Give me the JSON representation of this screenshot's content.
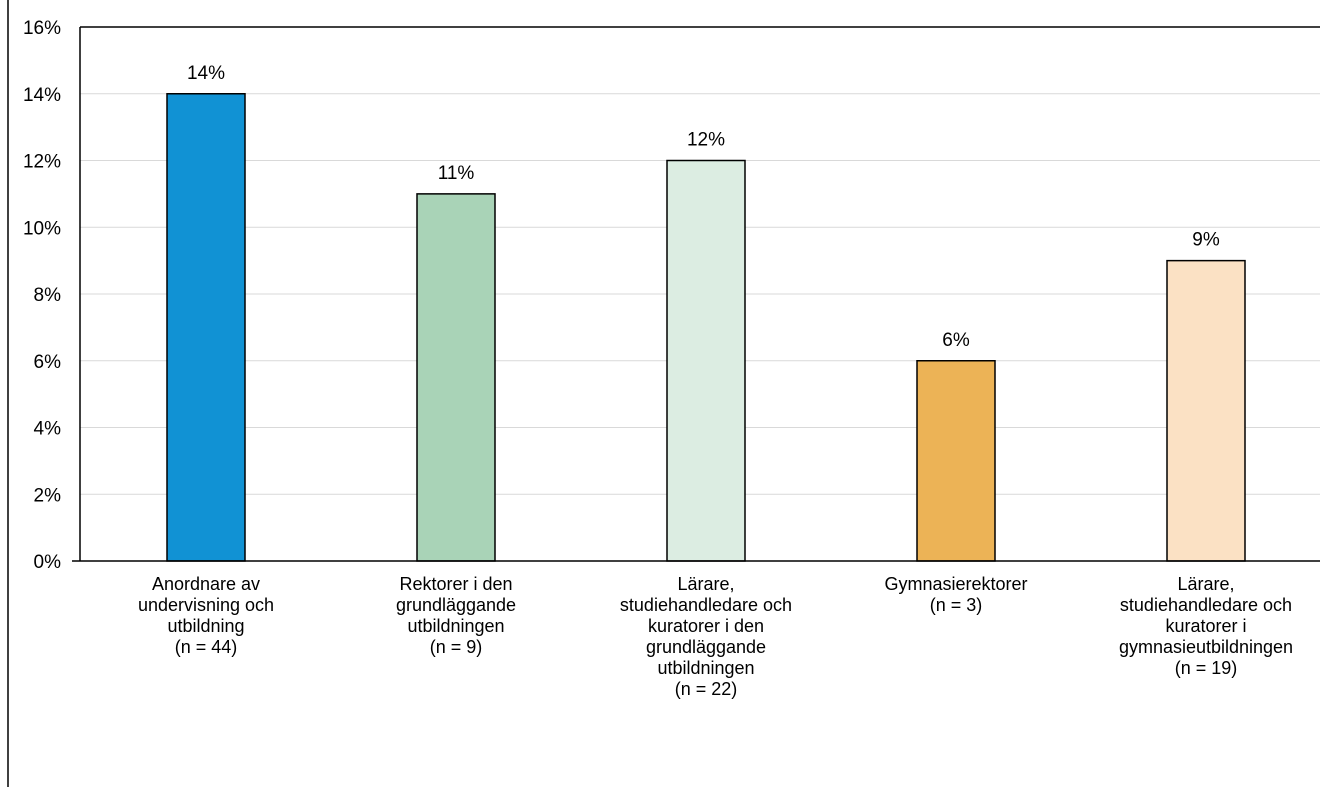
{
  "chart_data": {
    "type": "bar",
    "title": "",
    "xlabel": "",
    "ylabel": "",
    "ylim": [
      0,
      16
    ],
    "y_ticks": [
      0,
      2,
      4,
      6,
      8,
      10,
      12,
      14,
      16
    ],
    "y_tick_labels": [
      "0%",
      "2%",
      "4%",
      "6%",
      "8%",
      "10%",
      "12%",
      "14%",
      "16%"
    ],
    "grid": true,
    "legend": "none",
    "categories": [
      [
        "Anordnare av",
        "undervisning och",
        "utbildning",
        "(n = 44)"
      ],
      [
        "Rektorer i den",
        "grundläggande",
        "utbildningen",
        "(n = 9)"
      ],
      [
        "Lärare,",
        "studiehandledare och",
        "kuratorer i den",
        "grundläggande",
        "utbildningen",
        "(n = 22)"
      ],
      [
        "Gymnasierektorer",
        "(n = 3)"
      ],
      [
        "Lärare,",
        "studiehandledare och",
        "kuratorer i",
        "gymnasieutbildningen",
        "(n = 19)"
      ]
    ],
    "values": [
      14,
      11,
      12,
      6,
      9
    ],
    "data_labels": [
      "14%",
      "11%",
      "12%",
      "6%",
      "9%"
    ],
    "colors": [
      "#1192d4",
      "#a9d3b7",
      "#dcede2",
      "#ecb356",
      "#fbe1c4"
    ]
  }
}
